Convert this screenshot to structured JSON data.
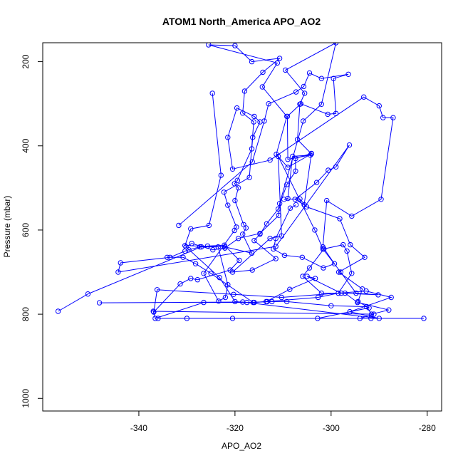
{
  "chart_data": {
    "type": "line",
    "title": "ATOM1 North_America APO_AO2",
    "xlabel": "APO_AO2",
    "ylabel": "Pressure (mbar)",
    "xlim": [
      -360,
      -277
    ],
    "ylim": [
      1030,
      155
    ],
    "y_reversed": true,
    "grid": false,
    "legend": "none",
    "xticks": [
      -340,
      -320,
      -300,
      -280
    ],
    "yticks": [
      200,
      400,
      600,
      800,
      1000
    ],
    "series": [
      {
        "color": "#0000ff",
        "marker": "open-circle",
        "points": [
          [
            -356.8,
            793
          ],
          [
            -350.6,
            752
          ],
          [
            -327.0,
            640
          ],
          [
            -323.5,
            640
          ],
          [
            -321.5,
            730
          ],
          [
            -322.0,
            760
          ],
          [
            -323.4,
            769
          ],
          [
            -326.5,
            703
          ],
          [
            -320.1,
            601
          ],
          [
            -319.7,
            593
          ],
          [
            -321.5,
            541
          ],
          [
            -322.3,
            510
          ],
          [
            -317.0,
            475
          ],
          [
            -316.1,
            343
          ],
          [
            -318.4,
            322
          ],
          [
            -318.0,
            270
          ],
          [
            -314.2,
            225
          ],
          [
            -310.7,
            192
          ],
          [
            -316.5,
            200
          ],
          [
            -320.0,
            162
          ],
          [
            -325.5,
            160
          ],
          [
            -311.2,
            203
          ],
          [
            -314.3,
            260
          ],
          [
            -309.2,
            330
          ],
          [
            -311.4,
            420
          ],
          [
            -309.0,
            451
          ],
          [
            -304.1,
            419
          ],
          [
            -307.0,
            385
          ],
          [
            -306.5,
            301
          ],
          [
            -305.5,
            275
          ],
          [
            -309.5,
            220
          ],
          [
            -299.0,
            155
          ],
          [
            -302.0,
            301
          ],
          [
            -305.8,
            341
          ],
          [
            -310.7,
            537
          ],
          [
            -310.9,
            565
          ],
          [
            -314.8,
            608
          ],
          [
            -319.3,
            620
          ],
          [
            -322.1,
            643
          ],
          [
            -324.6,
            647
          ],
          [
            -329.0,
            632
          ],
          [
            -330.2,
            640
          ],
          [
            -323.2,
            713
          ],
          [
            -320.0,
            770
          ],
          [
            -317.5,
            772
          ],
          [
            -312.3,
            770
          ],
          [
            -309.2,
            770
          ],
          [
            -300.0,
            780
          ],
          [
            -292.6,
            782
          ],
          [
            -291.6,
            800
          ],
          [
            -288.0,
            790
          ],
          [
            -294.5,
            772
          ],
          [
            -297.1,
            750
          ],
          [
            -302.0,
            750
          ],
          [
            -305.9,
            710
          ],
          [
            -304.5,
            690
          ],
          [
            -301.5,
            645
          ],
          [
            -297.5,
            635
          ],
          [
            -296.7,
            650
          ],
          [
            -295.7,
            703
          ],
          [
            -298.5,
            750
          ],
          [
            -302.7,
            760
          ],
          [
            -313.3,
            770
          ],
          [
            -316.0,
            772
          ],
          [
            -326.5,
            772
          ],
          [
            -336.6,
            810
          ],
          [
            -337.0,
            793
          ],
          [
            -291.1,
            800
          ],
          [
            -294.0,
            810
          ],
          [
            -291.7,
            810
          ],
          [
            -280.7,
            810
          ],
          [
            -336.0,
            810
          ]
        ]
      },
      {
        "color": "#0000ff",
        "marker": "open-circle",
        "points": [
          [
            -348.2,
            773
          ],
          [
            -318.4,
            771
          ],
          [
            -290.0,
            810
          ],
          [
            -296.1,
            794
          ],
          [
            -287.5,
            760
          ],
          [
            -292.7,
            745
          ],
          [
            -310.3,
            760
          ],
          [
            -320.3,
            753
          ],
          [
            -336.2,
            742
          ],
          [
            -336.9,
            795
          ],
          [
            -331.4,
            728
          ],
          [
            -329.2,
            715
          ],
          [
            -327.8,
            718
          ],
          [
            -321.0,
            695
          ],
          [
            -319.1,
            672
          ],
          [
            -322.2,
            636
          ],
          [
            -325.7,
            638
          ],
          [
            -327.3,
            640
          ],
          [
            -329.6,
            647
          ],
          [
            -330.4,
            650
          ],
          [
            -333.5,
            665
          ],
          [
            -343.8,
            678
          ],
          [
            -344.3,
            700
          ],
          [
            -311.5,
            639
          ],
          [
            -296.2,
            398
          ],
          [
            -299.0,
            450
          ],
          [
            -300.6,
            458
          ],
          [
            -303.0,
            487
          ],
          [
            -307.5,
            527
          ],
          [
            -305.6,
            540
          ],
          [
            -304.1,
            418
          ],
          [
            -307.4,
            430
          ],
          [
            -307.4,
            460
          ],
          [
            -309.2,
            492
          ],
          [
            -311.0,
            550
          ],
          [
            -313.4,
            585
          ],
          [
            -314.8,
            610
          ],
          [
            -316.0,
            625
          ],
          [
            -311.5,
            668
          ],
          [
            -316.4,
            695
          ],
          [
            -320.5,
            700
          ],
          [
            -312.7,
            620
          ],
          [
            -310.3,
            614
          ],
          [
            -311.0,
            425
          ],
          [
            -303.4,
            600
          ],
          [
            -301.7,
            645
          ],
          [
            -298.0,
            700
          ],
          [
            -294.8,
            750
          ],
          [
            -290.2,
            754
          ],
          [
            -297.9,
            750
          ],
          [
            -305.0,
            710
          ],
          [
            -303.3,
            715
          ],
          [
            -308.6,
            741
          ],
          [
            -313.5,
            770
          ],
          [
            -316.2,
            772
          ],
          [
            -325.0,
            703
          ],
          [
            -328.2,
            680
          ],
          [
            -330.8,
            665
          ],
          [
            -334.1,
            665
          ]
        ]
      },
      {
        "color": "#0000ff",
        "marker": "open-circle",
        "points": [
          [
            -331.7,
            589
          ],
          [
            -316.4,
            438
          ],
          [
            -313.9,
            341
          ],
          [
            -313.0,
            300
          ],
          [
            -307.3,
            272
          ],
          [
            -305.7,
            259
          ],
          [
            -304.5,
            227
          ],
          [
            -302.0,
            240
          ],
          [
            -296.4,
            230
          ],
          [
            -299.5,
            240
          ],
          [
            -299.0,
            323
          ],
          [
            -300.7,
            325
          ],
          [
            -306.3,
            300
          ],
          [
            -309.1,
            330
          ],
          [
            -309.0,
            432
          ],
          [
            -304.3,
            422
          ],
          [
            -308.0,
            425
          ],
          [
            -309.0,
            525
          ],
          [
            -309.8,
            527
          ],
          [
            -306.5,
            526
          ],
          [
            -305.1,
            545
          ],
          [
            -298.2,
            573
          ],
          [
            -296.0,
            635
          ],
          [
            -293.0,
            665
          ],
          [
            -298.4,
            700
          ],
          [
            -293.5,
            740
          ],
          [
            -294.4,
            770
          ],
          [
            -292.1,
            785
          ],
          [
            -302.8,
            810
          ],
          [
            -320.5,
            810
          ],
          [
            -330.0,
            810
          ]
        ]
      },
      {
        "color": "#0000ff",
        "marker": "open-circle",
        "points": [
          [
            -324.7,
            275
          ],
          [
            -322.9,
            470
          ],
          [
            -325.4,
            589
          ],
          [
            -329.2,
            597
          ],
          [
            -330.4,
            637
          ],
          [
            -322.1,
            640
          ],
          [
            -316.5,
            655
          ],
          [
            -318.4,
            610
          ],
          [
            -317.7,
            595
          ],
          [
            -318.2,
            587
          ],
          [
            -320.0,
            530
          ],
          [
            -319.3,
            500
          ],
          [
            -320.1,
            490
          ],
          [
            -319.5,
            482
          ],
          [
            -316.5,
            407
          ],
          [
            -316.3,
            380
          ],
          [
            -314.8,
            343
          ],
          [
            -316.0,
            330
          ],
          [
            -319.6,
            310
          ],
          [
            -321.5,
            380
          ],
          [
            -320.5,
            455
          ],
          [
            -312.7,
            434
          ],
          [
            -293.2,
            284
          ],
          [
            -290.0,
            305
          ],
          [
            -289.2,
            333
          ],
          [
            -287.1,
            333
          ],
          [
            -289.6,
            527
          ],
          [
            -295.7,
            567
          ],
          [
            -300.9,
            530
          ],
          [
            -301.7,
            640
          ],
          [
            -299.3,
            680
          ],
          [
            -301.6,
            690
          ],
          [
            -306.0,
            665
          ],
          [
            -309.7,
            660
          ],
          [
            -312.0,
            645
          ],
          [
            -311.5,
            620
          ],
          [
            -308.5,
            548
          ],
          [
            -307.3,
            540
          ]
        ]
      }
    ]
  }
}
